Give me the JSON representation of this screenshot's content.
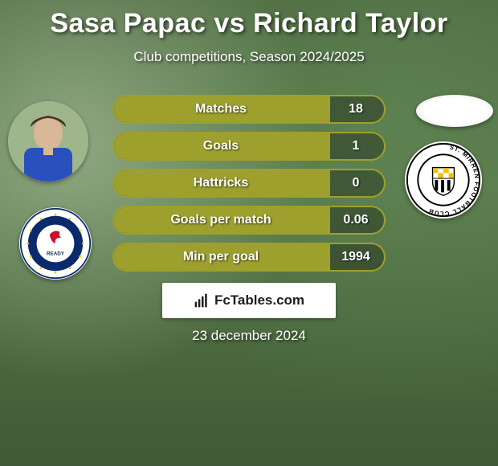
{
  "title": "Sasa Papac vs Richard Taylor",
  "subtitle": "Club competitions, Season 2024/2025",
  "date": "23 december 2024",
  "brand": "FcTables.com",
  "colors": {
    "pill_border": "#9da02d",
    "pill_fill": "#9da02d",
    "text": "#ffffff",
    "bg_empty": "rgba(0,0,0,0.3)"
  },
  "player_left": {
    "name": "Sasa Papac",
    "club": "Rangers",
    "club_colors": [
      "#0a2a6c",
      "#c8102e",
      "#ffffff"
    ]
  },
  "player_right": {
    "name": "Richard Taylor",
    "club": "St. Mirren",
    "club_colors": [
      "#000000",
      "#ffffff",
      "#f3c300"
    ]
  },
  "stats": [
    {
      "label": "Matches",
      "value": "18",
      "fill_ratio": 0.8
    },
    {
      "label": "Goals",
      "value": "1",
      "fill_ratio": 0.8
    },
    {
      "label": "Hattricks",
      "value": "0",
      "fill_ratio": 0.8
    },
    {
      "label": "Goals per match",
      "value": "0.06",
      "fill_ratio": 0.8
    },
    {
      "label": "Min per goal",
      "value": "1994",
      "fill_ratio": 0.8
    }
  ]
}
